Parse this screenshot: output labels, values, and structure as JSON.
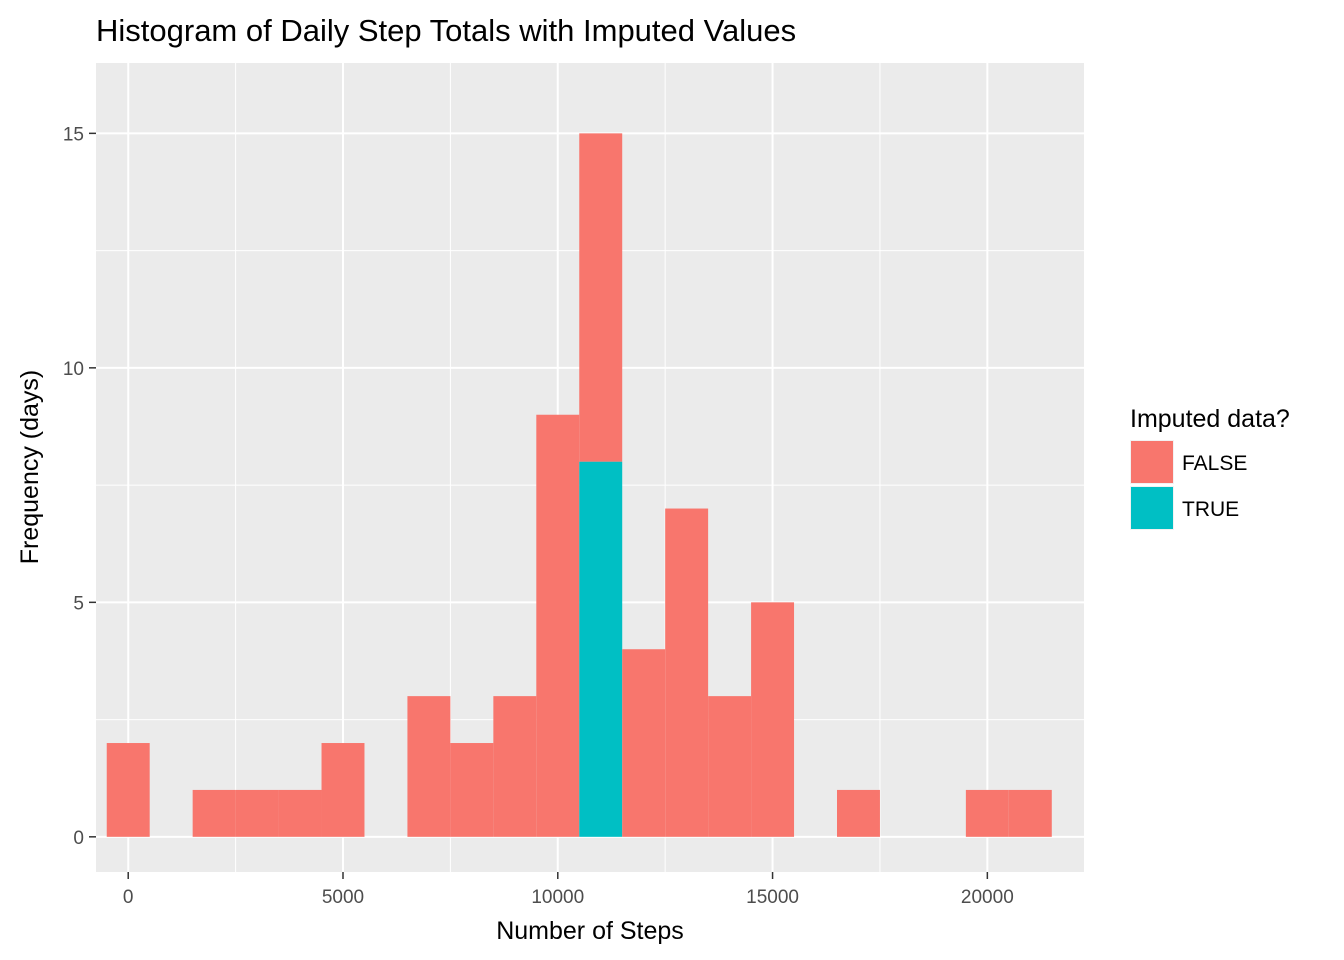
{
  "chart_data": {
    "type": "bar",
    "title": "Histogram of Daily Step Totals with Imputed Values",
    "xlabel": "Number of Steps",
    "ylabel": "Frequency (days)",
    "xlim": [
      -750,
      22250
    ],
    "ylim": [
      -0.75,
      16.5
    ],
    "x_ticks": [
      0,
      5000,
      10000,
      15000,
      20000
    ],
    "y_ticks": [
      0,
      5,
      10,
      15
    ],
    "x_tick_labels": [
      "0",
      "5000",
      "10000",
      "15000",
      "20000"
    ],
    "y_tick_labels": [
      "0",
      "5",
      "10",
      "15"
    ],
    "bin_width": 1000,
    "bin_centers": [
      0,
      1000,
      2000,
      3000,
      4000,
      5000,
      6000,
      7000,
      8000,
      9000,
      10000,
      11000,
      12000,
      13000,
      14000,
      15000,
      16000,
      17000,
      18000,
      19000,
      20000,
      21000
    ],
    "series": [
      {
        "name": "FALSE",
        "color": "#F8766D",
        "values": [
          2,
          0,
          1,
          1,
          1,
          2,
          0,
          3,
          2,
          3,
          9,
          7,
          4,
          7,
          3,
          5,
          0,
          1,
          0,
          0,
          1,
          1
        ]
      },
      {
        "name": "TRUE",
        "color": "#00BFC4",
        "values": [
          0,
          0,
          0,
          0,
          0,
          0,
          0,
          0,
          0,
          0,
          0,
          8,
          0,
          0,
          0,
          0,
          0,
          0,
          0,
          0,
          0,
          0
        ]
      }
    ],
    "stacked": true,
    "legend": {
      "title": "Imputed data?",
      "position": "right"
    },
    "grid": true,
    "panel_background": "#EBEBEB",
    "grid_color": "#FFFFFF"
  }
}
